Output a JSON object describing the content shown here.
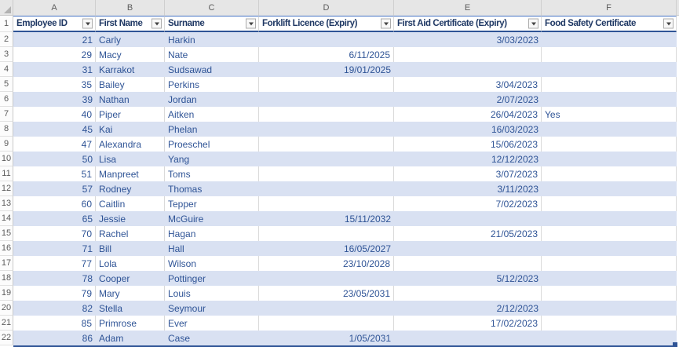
{
  "sheet": {
    "col_letters": [
      "A",
      "B",
      "C",
      "D",
      "E",
      "F"
    ],
    "colors": {
      "band": "#D9E1F2",
      "header_text": "#1F3864",
      "data_text": "#2F5496",
      "border_blue": "#2F5496",
      "border_blue_light": "#4472C4"
    }
  },
  "table": {
    "headers": [
      "Employee ID",
      "First Name",
      "Surname",
      "Forklift Licence (Expiry)",
      "First Aid Certificate (Expiry)",
      "Food Safety Certificate"
    ],
    "rows": [
      {
        "n": "2",
        "id": "21",
        "first": "Carly",
        "surname": "Harkin",
        "forklift": "",
        "first_aid": "3/03/2023",
        "food_safety": ""
      },
      {
        "n": "3",
        "id": "29",
        "first": "Macy",
        "surname": "Nate",
        "forklift": "6/11/2025",
        "first_aid": "",
        "food_safety": ""
      },
      {
        "n": "4",
        "id": "31",
        "first": "Karrakot",
        "surname": "Sudsawad",
        "forklift": "19/01/2025",
        "first_aid": "",
        "food_safety": ""
      },
      {
        "n": "5",
        "id": "35",
        "first": "Bailey",
        "surname": "Perkins",
        "forklift": "",
        "first_aid": "3/04/2023",
        "food_safety": ""
      },
      {
        "n": "6",
        "id": "39",
        "first": "Nathan",
        "surname": "Jordan",
        "forklift": "",
        "first_aid": "2/07/2023",
        "food_safety": ""
      },
      {
        "n": "7",
        "id": "40",
        "first": "Piper",
        "surname": "Aitken",
        "forklift": "",
        "first_aid": "26/04/2023",
        "food_safety": "Yes"
      },
      {
        "n": "8",
        "id": "45",
        "first": "Kai",
        "surname": "Phelan",
        "forklift": "",
        "first_aid": "16/03/2023",
        "food_safety": ""
      },
      {
        "n": "9",
        "id": "47",
        "first": "Alexandra",
        "surname": "Proeschel",
        "forklift": "",
        "first_aid": "15/06/2023",
        "food_safety": ""
      },
      {
        "n": "10",
        "id": "50",
        "first": "Lisa",
        "surname": "Yang",
        "forklift": "",
        "first_aid": "12/12/2023",
        "food_safety": ""
      },
      {
        "n": "11",
        "id": "51",
        "first": "Manpreet",
        "surname": "Toms",
        "forklift": "",
        "first_aid": "3/07/2023",
        "food_safety": ""
      },
      {
        "n": "12",
        "id": "57",
        "first": "Rodney",
        "surname": "Thomas",
        "forklift": "",
        "first_aid": "3/11/2023",
        "food_safety": ""
      },
      {
        "n": "13",
        "id": "60",
        "first": "Caitlin",
        "surname": "Tepper",
        "forklift": "",
        "first_aid": "7/02/2023",
        "food_safety": ""
      },
      {
        "n": "14",
        "id": "65",
        "first": "Jessie",
        "surname": "McGuire",
        "forklift": "15/11/2032",
        "first_aid": "",
        "food_safety": ""
      },
      {
        "n": "15",
        "id": "70",
        "first": "Rachel",
        "surname": "Hagan",
        "forklift": "",
        "first_aid": "21/05/2023",
        "food_safety": ""
      },
      {
        "n": "16",
        "id": "71",
        "first": "Bill",
        "surname": "Hall",
        "forklift": "16/05/2027",
        "first_aid": "",
        "food_safety": ""
      },
      {
        "n": "17",
        "id": "77",
        "first": "Lola",
        "surname": "Wilson",
        "forklift": "23/10/2028",
        "first_aid": "",
        "food_safety": ""
      },
      {
        "n": "18",
        "id": "78",
        "first": "Cooper",
        "surname": "Pottinger",
        "forklift": "",
        "first_aid": "5/12/2023",
        "food_safety": ""
      },
      {
        "n": "19",
        "id": "79",
        "first": "Mary",
        "surname": "Louis",
        "forklift": "23/05/2031",
        "first_aid": "",
        "food_safety": ""
      },
      {
        "n": "20",
        "id": "82",
        "first": "Stella",
        "surname": "Seymour",
        "forklift": "",
        "first_aid": "2/12/2023",
        "food_safety": ""
      },
      {
        "n": "21",
        "id": "85",
        "first": "Primrose",
        "surname": "Ever",
        "forklift": "",
        "first_aid": "17/02/2023",
        "food_safety": ""
      },
      {
        "n": "22",
        "id": "86",
        "first": "Adam",
        "surname": "Case",
        "forklift": "1/05/2031",
        "first_aid": "",
        "food_safety": ""
      }
    ]
  },
  "header_row_number": "1"
}
